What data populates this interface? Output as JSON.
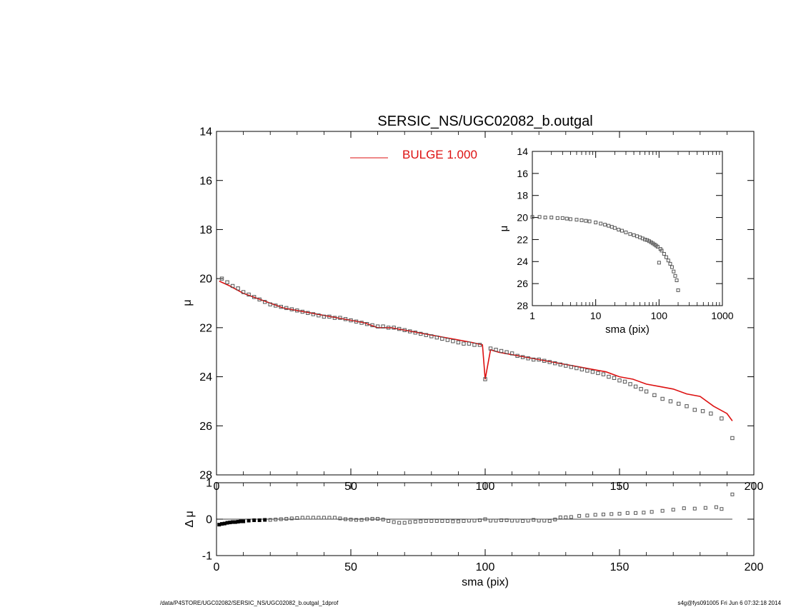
{
  "title": "SERSIC_NS/UGC02082_b.outgal",
  "footer_left": "/data/P4STORE/UGC02082/SERSIC_NS/UGC02082_b.outgal_1dprof",
  "footer_right": "s4g@fys091005  Fri Jun  6 07:32:18 2014",
  "colors": {
    "model": "#dd1111",
    "data": "#555555",
    "axes": "#000000"
  },
  "chart_data": [
    {
      "id": "main",
      "type": "scatter",
      "xlabel": "sma (pix)",
      "ylabel": "μ",
      "xlim": [
        0,
        200
      ],
      "ylim": [
        28,
        14
      ],
      "y_inverted": true,
      "xticks": [
        0,
        50,
        100,
        150,
        200
      ],
      "yticks": [
        14,
        16,
        18,
        20,
        22,
        24,
        26,
        28
      ],
      "legend": {
        "label": "BULGE  1.000",
        "placement": "top-center"
      },
      "model_series": {
        "name": "BULGE  1.000",
        "x": [
          1,
          5,
          10,
          15,
          20,
          25,
          30,
          35,
          40,
          45,
          50,
          55,
          60,
          65,
          70,
          75,
          80,
          85,
          90,
          95,
          99,
          100,
          102,
          105,
          110,
          115,
          120,
          125,
          130,
          135,
          140,
          145,
          150,
          155,
          160,
          165,
          170,
          175,
          180,
          185,
          190,
          192
        ],
        "y": [
          20.1,
          20.3,
          20.6,
          20.8,
          21.0,
          21.2,
          21.3,
          21.4,
          21.5,
          21.6,
          21.7,
          21.8,
          22.0,
          22.0,
          22.1,
          22.2,
          22.3,
          22.4,
          22.5,
          22.6,
          22.7,
          24.1,
          22.9,
          23.0,
          23.1,
          23.2,
          23.3,
          23.4,
          23.5,
          23.6,
          23.7,
          23.8,
          24.0,
          24.1,
          24.3,
          24.4,
          24.5,
          24.7,
          24.8,
          25.2,
          25.5,
          25.8
        ]
      },
      "data_series": {
        "x": [
          2,
          4,
          6,
          8,
          10,
          12,
          14,
          16,
          18,
          20,
          22,
          24,
          26,
          28,
          30,
          32,
          34,
          36,
          38,
          40,
          42,
          44,
          46,
          48,
          50,
          52,
          54,
          56,
          58,
          60,
          62,
          64,
          66,
          68,
          70,
          72,
          74,
          76,
          78,
          80,
          82,
          84,
          86,
          88,
          90,
          92,
          94,
          96,
          98,
          100,
          102,
          104,
          106,
          108,
          110,
          112,
          114,
          116,
          118,
          120,
          122,
          124,
          126,
          128,
          130,
          132,
          134,
          136,
          138,
          140,
          142,
          144,
          146,
          148,
          150,
          152,
          154,
          156,
          158,
          160,
          163,
          166,
          169,
          172,
          175,
          178,
          181,
          184,
          188,
          192
        ],
        "y": [
          20.0,
          20.15,
          20.3,
          20.4,
          20.55,
          20.65,
          20.75,
          20.85,
          20.95,
          21.05,
          21.1,
          21.15,
          21.2,
          21.25,
          21.3,
          21.35,
          21.4,
          21.45,
          21.5,
          21.55,
          21.55,
          21.6,
          21.6,
          21.65,
          21.7,
          21.75,
          21.8,
          21.85,
          21.9,
          21.95,
          21.95,
          22.0,
          22.0,
          22.05,
          22.1,
          22.15,
          22.2,
          22.25,
          22.3,
          22.35,
          22.4,
          22.45,
          22.5,
          22.55,
          22.6,
          22.65,
          22.65,
          22.7,
          22.7,
          24.1,
          22.85,
          22.9,
          22.95,
          23.0,
          23.05,
          23.15,
          23.2,
          23.25,
          23.3,
          23.3,
          23.35,
          23.4,
          23.45,
          23.5,
          23.55,
          23.6,
          23.65,
          23.7,
          23.75,
          23.8,
          23.85,
          23.9,
          24.0,
          24.05,
          24.15,
          24.2,
          24.3,
          24.4,
          24.5,
          24.6,
          24.75,
          24.9,
          25.0,
          25.1,
          25.2,
          25.35,
          25.4,
          25.5,
          25.7,
          26.5
        ]
      }
    },
    {
      "id": "inset",
      "type": "scatter",
      "xlabel": "sma (pix)",
      "ylabel": "μ",
      "x_scale": "log",
      "xlim": [
        1,
        1000
      ],
      "ylim": [
        28,
        14
      ],
      "y_inverted": true,
      "xticks": [
        1,
        10,
        100,
        1000
      ],
      "yticks": [
        14,
        16,
        18,
        20,
        22,
        24,
        26,
        28
      ],
      "data_series": {
        "x": [
          1.0,
          1.3,
          1.6,
          2,
          2.5,
          3,
          3.5,
          4,
          5,
          6,
          7,
          8,
          10,
          12,
          14,
          16,
          18,
          20,
          23,
          26,
          30,
          35,
          40,
          45,
          50,
          55,
          60,
          65,
          70,
          75,
          80,
          85,
          90,
          95,
          100,
          105,
          110,
          120,
          130,
          140,
          150,
          160,
          170,
          180,
          190,
          200
        ],
        "y": [
          19.95,
          19.95,
          20.0,
          20.0,
          20.05,
          20.05,
          20.1,
          20.15,
          20.2,
          20.25,
          20.3,
          20.35,
          20.45,
          20.55,
          20.65,
          20.75,
          20.85,
          20.95,
          21.1,
          21.2,
          21.35,
          21.5,
          21.6,
          21.7,
          21.8,
          21.9,
          22.0,
          22.05,
          22.15,
          22.25,
          22.35,
          22.45,
          22.55,
          22.65,
          24.1,
          22.85,
          23.0,
          23.3,
          23.6,
          23.9,
          24.2,
          24.5,
          24.9,
          25.3,
          25.7,
          26.6
        ]
      }
    },
    {
      "id": "residual",
      "type": "scatter",
      "xlabel": "sma (pix)",
      "ylabel": "Δ μ",
      "xlim": [
        0,
        200
      ],
      "ylim": [
        -1,
        1
      ],
      "xticks": [
        0,
        50,
        100,
        150,
        200
      ],
      "yticks": [
        -1,
        0,
        1
      ],
      "reference_line": 0,
      "data_series": {
        "x": [
          1,
          2,
          3,
          4,
          5,
          6,
          7,
          8,
          9,
          10,
          12,
          14,
          16,
          18,
          20,
          22,
          24,
          26,
          28,
          30,
          32,
          34,
          36,
          38,
          40,
          42,
          44,
          46,
          48,
          50,
          52,
          54,
          56,
          58,
          60,
          62,
          64,
          66,
          68,
          70,
          72,
          74,
          76,
          78,
          80,
          82,
          84,
          86,
          88,
          90,
          92,
          94,
          96,
          98,
          100,
          102,
          104,
          106,
          108,
          110,
          112,
          114,
          116,
          118,
          120,
          122,
          124,
          126,
          128,
          130,
          132,
          135,
          138,
          141,
          144,
          147,
          150,
          153,
          156,
          159,
          162,
          166,
          170,
          174,
          178,
          182,
          186,
          188,
          192
        ],
        "y": [
          -0.15,
          -0.13,
          -0.12,
          -0.1,
          -0.09,
          -0.08,
          -0.08,
          -0.07,
          -0.06,
          -0.06,
          -0.04,
          -0.03,
          -0.03,
          -0.02,
          -0.02,
          -0.01,
          0.0,
          0.01,
          0.02,
          0.03,
          0.04,
          0.04,
          0.04,
          0.04,
          0.04,
          0.04,
          0.04,
          0.02,
          0.0,
          -0.01,
          -0.02,
          -0.02,
          0.0,
          0.01,
          0.01,
          -0.01,
          -0.05,
          -0.08,
          -0.1,
          -0.1,
          -0.08,
          -0.07,
          -0.06,
          -0.05,
          -0.05,
          -0.05,
          -0.05,
          -0.05,
          -0.06,
          -0.06,
          -0.05,
          -0.04,
          -0.04,
          -0.03,
          0.0,
          -0.04,
          -0.04,
          -0.03,
          -0.03,
          -0.04,
          -0.04,
          -0.05,
          -0.04,
          -0.02,
          -0.04,
          -0.04,
          -0.05,
          -0.01,
          0.05,
          0.05,
          0.06,
          0.09,
          0.1,
          0.12,
          0.13,
          0.14,
          0.15,
          0.17,
          0.17,
          0.18,
          0.2,
          0.23,
          0.26,
          0.3,
          0.29,
          0.31,
          0.33,
          0.28,
          0.68
        ]
      }
    }
  ]
}
